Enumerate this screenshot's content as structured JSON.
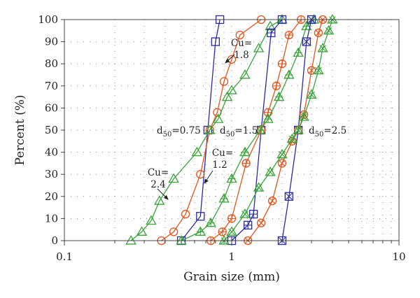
{
  "chart_data": {
    "type": "line",
    "xlabel": "Grain size (mm)",
    "ylabel": "Percent (%)",
    "xscale": "log",
    "xlim": [
      0.1,
      10
    ],
    "ylim": [
      0,
      100
    ],
    "xticks": [
      {
        "value": 0.1,
        "label": "0.1"
      },
      {
        "value": 1,
        "label": "1"
      },
      {
        "value": 10,
        "label": "10"
      }
    ],
    "yticks": [
      {
        "value": 0,
        "label": "0"
      },
      {
        "value": 10,
        "label": "10"
      },
      {
        "value": 20,
        "label": "20"
      },
      {
        "value": 30,
        "label": "30"
      },
      {
        "value": 40,
        "label": "40"
      },
      {
        "value": 50,
        "label": "50"
      },
      {
        "value": 60,
        "label": "60"
      },
      {
        "value": 70,
        "label": "70"
      },
      {
        "value": 80,
        "label": "80"
      },
      {
        "value": 90,
        "label": "90"
      },
      {
        "value": 100,
        "label": "100"
      }
    ],
    "grid": true,
    "legend": "none",
    "annotations": {
      "cu18": {
        "main": "Cu=",
        "value": "1.8"
      },
      "cu12": {
        "main": "Cu=",
        "value": "1.2"
      },
      "cu24": {
        "main": "Cu=",
        "value": "2.4"
      },
      "d50_a": {
        "prefix": "d",
        "sub": "50",
        "suffix": "=0.75"
      },
      "d50_b": {
        "prefix": "d",
        "sub": "50",
        "suffix": "=1.5"
      },
      "d50_c": {
        "prefix": "d",
        "sub": "50",
        "suffix": "=2.5"
      }
    },
    "series": [
      {
        "group": "d50=0.75",
        "cu": "1.2",
        "marker": "square",
        "color": "#2a2a9e",
        "points": [
          [
            0.5,
            0
          ],
          [
            0.65,
            11
          ],
          [
            0.72,
            50
          ],
          [
            0.8,
            90
          ],
          [
            0.85,
            100
          ]
        ]
      },
      {
        "group": "d50=0.75",
        "cu": "1.8",
        "marker": "circle",
        "color": "#e0531a",
        "points": [
          [
            0.38,
            0
          ],
          [
            0.45,
            4
          ],
          [
            0.53,
            12
          ],
          [
            0.65,
            30
          ],
          [
            0.74,
            50
          ],
          [
            0.82,
            58
          ],
          [
            0.9,
            72
          ],
          [
            1.0,
            82
          ],
          [
            1.12,
            93
          ],
          [
            1.5,
            100
          ]
        ]
      },
      {
        "group": "d50=0.75",
        "cu": "2.4",
        "marker": "triangle",
        "color": "#3aa23a",
        "points": [
          [
            0.25,
            0
          ],
          [
            0.29,
            4
          ],
          [
            0.33,
            9
          ],
          [
            0.37,
            18
          ],
          [
            0.45,
            28
          ],
          [
            0.62,
            40
          ],
          [
            0.74,
            50
          ],
          [
            0.83,
            55
          ],
          [
            0.94,
            65
          ],
          [
            1.0,
            68
          ],
          [
            1.2,
            75
          ],
          [
            1.45,
            87
          ],
          [
            1.7,
            97
          ],
          [
            2.0,
            100
          ]
        ]
      }
    ],
    "series_compound": [
      {
        "group": "d50=1.5",
        "cu": "1.2",
        "marker": "square-plus",
        "color": "#2a2a9e",
        "points": [
          [
            1.0,
            0
          ],
          [
            1.25,
            7
          ],
          [
            1.35,
            12
          ],
          [
            1.5,
            50
          ],
          [
            1.72,
            94
          ],
          [
            2.0,
            100
          ]
        ]
      },
      {
        "group": "d50=1.5",
        "cu": "1.8",
        "marker": "circle-plus",
        "color": "#e0531a",
        "points": [
          [
            0.75,
            0
          ],
          [
            0.88,
            4
          ],
          [
            1.0,
            10
          ],
          [
            1.22,
            35
          ],
          [
            1.5,
            50
          ],
          [
            1.65,
            58
          ],
          [
            1.85,
            70
          ],
          [
            2.0,
            80
          ],
          [
            2.2,
            93
          ],
          [
            2.6,
            100
          ]
        ]
      },
      {
        "group": "d50=1.5",
        "cu": "2.4",
        "marker": "triangle-plus",
        "color": "#3aa23a",
        "points": [
          [
            0.5,
            0
          ],
          [
            0.65,
            4
          ],
          [
            0.75,
            8
          ],
          [
            0.9,
            19
          ],
          [
            1.0,
            28
          ],
          [
            1.2,
            40
          ],
          [
            1.48,
            50
          ],
          [
            1.65,
            55
          ],
          [
            1.92,
            65
          ],
          [
            2.2,
            75
          ],
          [
            2.5,
            85
          ],
          [
            2.8,
            97
          ],
          [
            3.1,
            100
          ]
        ]
      },
      {
        "group": "d50=2.5",
        "cu": "1.2",
        "marker": "square-x",
        "color": "#2a2a9e",
        "points": [
          [
            2.0,
            0
          ],
          [
            2.2,
            20
          ],
          [
            2.5,
            50
          ],
          [
            2.8,
            90
          ],
          [
            3.0,
            100
          ]
        ]
      },
      {
        "group": "d50=2.5",
        "cu": "1.8",
        "marker": "circle-x",
        "color": "#e0531a",
        "points": [
          [
            1.25,
            0
          ],
          [
            1.5,
            8
          ],
          [
            1.75,
            18
          ],
          [
            2.0,
            35
          ],
          [
            2.3,
            45
          ],
          [
            2.5,
            50
          ],
          [
            2.7,
            57
          ],
          [
            3.0,
            77
          ],
          [
            3.3,
            94
          ],
          [
            3.5,
            100
          ]
        ]
      },
      {
        "group": "d50=2.5",
        "cu": "2.4",
        "marker": "triangle-x",
        "color": "#3aa23a",
        "points": [
          [
            0.9,
            0
          ],
          [
            1.0,
            4
          ],
          [
            1.2,
            12
          ],
          [
            1.45,
            24
          ],
          [
            1.7,
            31
          ],
          [
            2.0,
            39
          ],
          [
            2.3,
            46
          ],
          [
            2.5,
            50
          ],
          [
            2.7,
            56
          ],
          [
            3.0,
            66
          ],
          [
            3.3,
            77
          ],
          [
            3.5,
            87
          ],
          [
            3.8,
            95
          ],
          [
            4.0,
            100
          ]
        ]
      }
    ]
  }
}
